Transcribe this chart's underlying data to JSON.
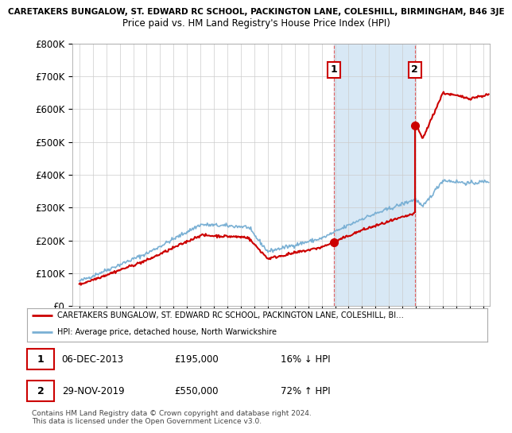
{
  "title_full": "CARETAKERS BUNGALOW, ST. EDWARD RC SCHOOL, PACKINGTON LANE, COLESHILL, BIRMINGHAM, B46 3JE",
  "subtitle": "Price paid vs. HM Land Registry's House Price Index (HPI)",
  "ylim": [
    0,
    800000
  ],
  "yticks": [
    0,
    100000,
    200000,
    300000,
    400000,
    500000,
    600000,
    700000,
    800000
  ],
  "ytick_labels": [
    "£0",
    "£100K",
    "£200K",
    "£300K",
    "£400K",
    "£500K",
    "£600K",
    "£700K",
    "£800K"
  ],
  "xlim_start": 1994.5,
  "xlim_end": 2025.5,
  "sale1_year": 2013.92,
  "sale1_price": 195000,
  "sale2_year": 2019.92,
  "sale2_price": 550000,
  "red_color": "#cc0000",
  "blue_color": "#7ab0d4",
  "shade_color": "#d8e8f5",
  "legend_red": "CARETAKERS BUNGALOW, ST. EDWARD RC SCHOOL, PACKINGTON LANE, COLESHILL, BI…",
  "legend_blue": "HPI: Average price, detached house, North Warwickshire",
  "table_row1_num": "1",
  "table_row1_date": "06-DEC-2013",
  "table_row1_price": "£195,000",
  "table_row1_pct": "16% ↓ HPI",
  "table_row2_num": "2",
  "table_row2_date": "29-NOV-2019",
  "table_row2_price": "£550,000",
  "table_row2_pct": "72% ↑ HPI",
  "footnote": "Contains HM Land Registry data © Crown copyright and database right 2024.\nThis data is licensed under the Open Government Licence v3.0.",
  "background_color": "#ffffff",
  "grid_color": "#cccccc"
}
